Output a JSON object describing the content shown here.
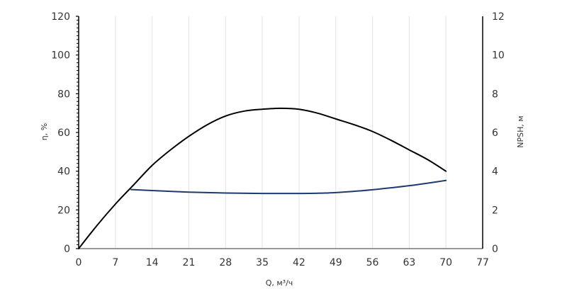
{
  "chart_data": {
    "type": "line",
    "xlabel": "Q, м³/ч",
    "ylabel": "η, %",
    "y2label": "NPSH, м",
    "xlim": [
      0,
      77
    ],
    "ylim": [
      0,
      120
    ],
    "y2lim": [
      0,
      12
    ],
    "x_ticks": [
      "0",
      "7",
      "14",
      "21",
      "28",
      "35",
      "42",
      "49",
      "56",
      "63",
      "70",
      "77"
    ],
    "y_ticks": [
      "0",
      "20",
      "40",
      "60",
      "80",
      "100",
      "120"
    ],
    "y2_ticks": [
      "0",
      "2",
      "4",
      "6",
      "8",
      "10",
      "12"
    ],
    "grid": {
      "vertical": true,
      "horizontal": false
    },
    "series": [
      {
        "axis": "left",
        "color": "#000000",
        "x": [
          0,
          3.5,
          7,
          10.5,
          14,
          17.5,
          21,
          24.5,
          28,
          31.5,
          35,
          38.5,
          42,
          45.5,
          49,
          52.5,
          56,
          59.5,
          63,
          66.5,
          70
        ],
        "values": [
          0,
          12,
          23,
          33,
          43,
          51,
          58,
          64,
          68.5,
          71,
          72,
          72.5,
          72,
          70,
          67,
          64,
          60.5,
          56,
          51,
          46,
          40
        ]
      },
      {
        "axis": "right",
        "color": "#1f3a6e",
        "x": [
          10,
          14,
          21,
          28,
          35,
          42,
          47,
          52,
          56,
          63,
          70
        ],
        "values": [
          3.05,
          3.0,
          2.92,
          2.87,
          2.85,
          2.85,
          2.87,
          2.95,
          3.04,
          3.25,
          3.52
        ]
      }
    ]
  }
}
